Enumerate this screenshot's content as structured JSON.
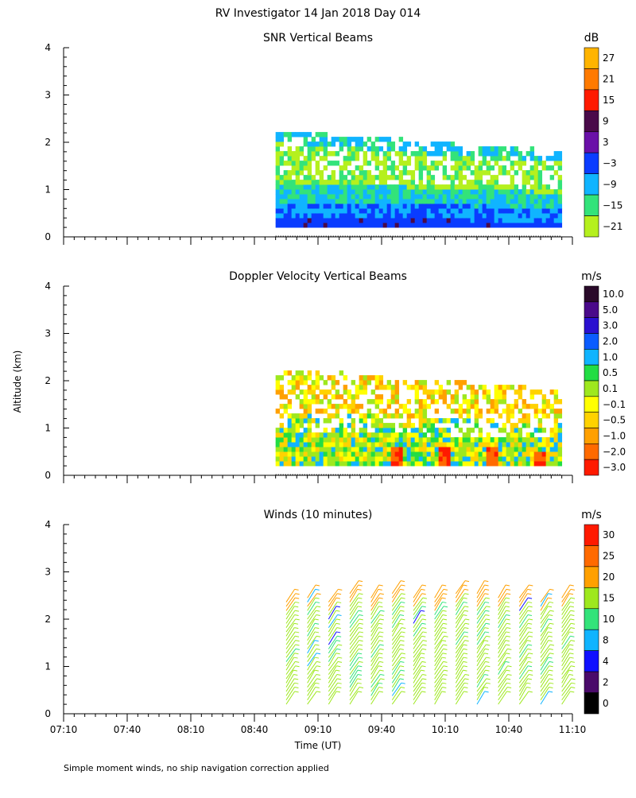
{
  "title": "RV Investigator  14 Jan 2018 Day 014",
  "footer_note": "Simple moment winds, no ship navigation correction applied",
  "ylabel": "Altitude (km)",
  "xlabel": "Time (UT)",
  "time_ticks": [
    "07:10",
    "07:40",
    "08:10",
    "08:40",
    "09:10",
    "09:40",
    "10:10",
    "10:40",
    "11:10"
  ],
  "time_range_hours": [
    7.1667,
    11.1667
  ],
  "chart_data": [
    {
      "type": "heatmap",
      "title": "SNR Vertical Beams",
      "xlabel": "Time (UT)",
      "ylabel": "Altitude (km)",
      "ylim": [
        0,
        4
      ],
      "yticks": [
        "0",
        "1",
        "2",
        "3",
        "4"
      ],
      "colorbar_unit": "dB",
      "colorbar_labels": [
        "27",
        "21",
        "15",
        "9",
        "3",
        "−3",
        "−9",
        "−15",
        "−21"
      ],
      "colorbar_colors": [
        "#ffb400",
        "#ff7a00",
        "#ff1a00",
        "#4a0a4a",
        "#6a10a8",
        "#0a3cff",
        "#10b4ff",
        "#33e37a",
        "#b5f01e"
      ],
      "data_start_time": "08:50",
      "data_end_time": "11:05",
      "data_altitude_km": [
        0.2,
        2.2
      ]
    },
    {
      "type": "heatmap",
      "title": "Doppler Velocity Vertical Beams",
      "xlabel": "Time (UT)",
      "ylabel": "Altitude (km)",
      "ylim": [
        0,
        4
      ],
      "yticks": [
        "0",
        "1",
        "2",
        "3",
        "4"
      ],
      "colorbar_unit": "m/s",
      "colorbar_labels": [
        "10.0",
        "5.0",
        "3.0",
        "2.0",
        "1.0",
        "0.5",
        "0.1",
        "−0.1",
        "−0.5",
        "−1.0",
        "−2.0",
        "−3.0"
      ],
      "colorbar_colors": [
        "#2a0a2a",
        "#4a0a8a",
        "#2a10d0",
        "#0a5cff",
        "#10b4ff",
        "#22dd44",
        "#9ee81e",
        "#ffff00",
        "#ffd200",
        "#ffa000",
        "#ff6a00",
        "#ff1a00"
      ],
      "data_start_time": "08:50",
      "data_end_time": "11:05",
      "data_altitude_km": [
        0.2,
        2.2
      ]
    },
    {
      "type": "scatter",
      "title": "Winds (10 minutes)",
      "xlabel": "Time (UT)",
      "ylabel": "Altitude (km)",
      "ylim": [
        0,
        4
      ],
      "yticks": [
        "0",
        "1",
        "2",
        "3",
        "4"
      ],
      "colorbar_unit": "m/s",
      "colorbar_labels": [
        "30",
        "25",
        "20",
        "15",
        "10",
        "8",
        "4",
        "2",
        "0"
      ],
      "colorbar_colors": [
        "#ff1a00",
        "#ff6a00",
        "#ffa000",
        "#9ee81e",
        "#33e37a",
        "#10b4ff",
        "#1010ff",
        "#4a0a6a",
        "#000000"
      ],
      "profile_times": [
        "08:55",
        "09:05",
        "09:15",
        "09:25",
        "09:35",
        "09:45",
        "09:55",
        "10:05",
        "10:15",
        "10:25",
        "10:35",
        "10:45",
        "10:55",
        "11:05"
      ],
      "data_altitude_km": [
        0.2,
        2.7
      ]
    }
  ]
}
